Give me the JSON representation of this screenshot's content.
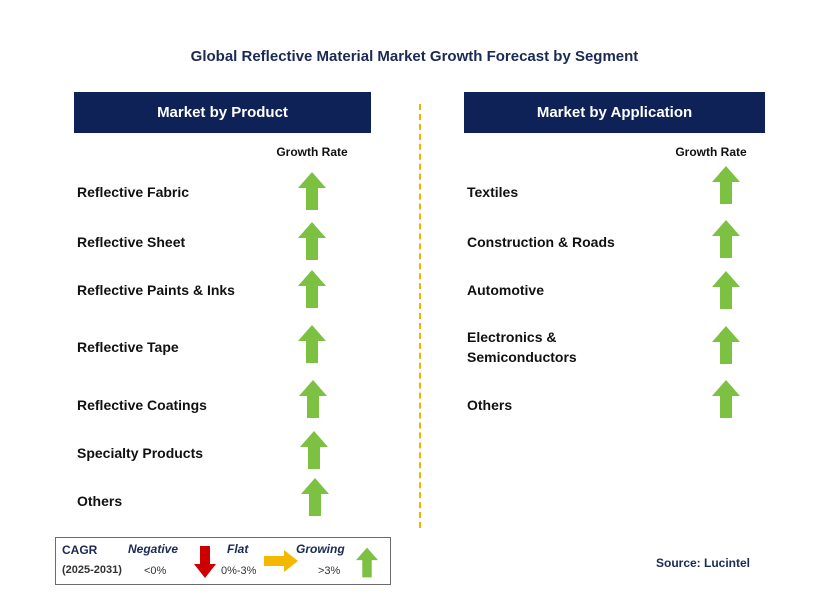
{
  "title": "Global Reflective Material Market Growth Forecast by Segment",
  "left_panel": {
    "header": "Market by Product",
    "growth_label": "Growth Rate",
    "items": [
      {
        "label": "Reflective Fabric",
        "trend": "growing"
      },
      {
        "label": "Reflective Sheet",
        "trend": "growing"
      },
      {
        "label": "Reflective Paints & Inks",
        "trend": "growing"
      },
      {
        "label": "Reflective Tape",
        "trend": "growing"
      },
      {
        "label": "Reflective Coatings",
        "trend": "growing"
      },
      {
        "label": "Specialty Products",
        "trend": "growing"
      },
      {
        "label": "Others",
        "trend": "growing"
      }
    ]
  },
  "right_panel": {
    "header": "Market by Application",
    "growth_label": "Growth Rate",
    "items": [
      {
        "label": "Textiles",
        "trend": "growing"
      },
      {
        "label": "Construction & Roads",
        "trend": "growing"
      },
      {
        "label": "Automotive",
        "trend": "growing"
      },
      {
        "label": "Electronics &",
        "label2": "Semiconductors",
        "trend": "growing"
      },
      {
        "label": "Others",
        "trend": "growing"
      }
    ]
  },
  "legend": {
    "cagr": "CAGR",
    "period": "(2025-2031)",
    "negative": {
      "label": "Negative",
      "range": "<0%",
      "color": "#cc0000",
      "icon": "down-arrow-icon"
    },
    "flat": {
      "label": "Flat",
      "range": "0%-3%",
      "color": "#f5b800",
      "icon": "right-arrow-icon"
    },
    "growing": {
      "label": "Growing",
      "range": ">3%",
      "color": "#7cc142",
      "icon": "up-arrow-icon"
    }
  },
  "source": "Source: Lucintel",
  "colors": {
    "header_bg": "#0e2258",
    "up_arrow": "#7cc142",
    "divider": "#f0b400"
  }
}
